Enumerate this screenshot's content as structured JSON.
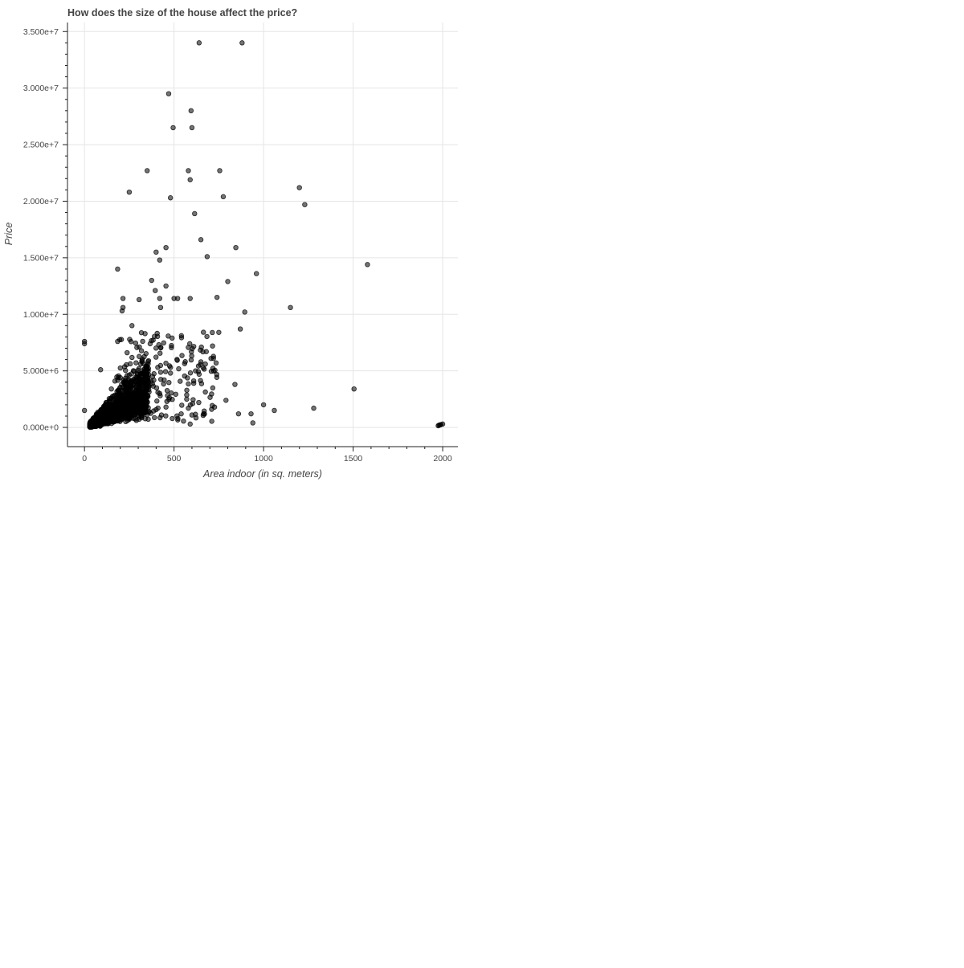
{
  "chart_data": {
    "type": "scatter",
    "title": "How does the size of the house affect the price?",
    "xlabel": "Area indoor (in sq. meters)",
    "ylabel": "Price",
    "xlim": [
      -95,
      2085
    ],
    "ylim": [
      -1700000,
      35800000
    ],
    "x_ticks": [
      0,
      500,
      1000,
      1500,
      2000
    ],
    "x_tick_labels": [
      "0",
      "500",
      "1000",
      "1500",
      "2000"
    ],
    "y_ticks": [
      0,
      5000000,
      10000000,
      15000000,
      20000000,
      25000000,
      30000000,
      35000000
    ],
    "y_tick_labels": [
      "0.000e+0",
      "5.000e+6",
      "1.000e+7",
      "1.500e+7",
      "2.000e+7",
      "2.500e+7",
      "3.000e+7",
      "3.500e+7"
    ],
    "grid": true,
    "legend": "none",
    "marker_color": "#000000",
    "marker_opacity": 0.55,
    "series": [
      {
        "x": [
          640,
          880,
          470,
          595,
          495,
          600,
          350,
          580,
          755,
          590,
          250,
          775,
          480,
          615,
          1200,
          1230,
          650,
          845,
          455,
          400,
          685,
          1580,
          420,
          185,
          960,
          375,
          800,
          455,
          500,
          395,
          420,
          740,
          425,
          215,
          305,
          210,
          215,
          265,
          1150,
          590,
          520,
          895,
          750,
          0,
          0,
          90,
          185,
          715,
          680,
          870,
          1505,
          1280,
          1060,
          1000,
          840,
          860,
          930,
          940,
          790,
          580,
          540,
          590,
          600,
          455,
          665,
          710,
          460,
          420,
          445,
          480,
          640,
          620,
          610,
          650,
          720,
          735,
          0,
          55,
          80,
          130,
          150,
          170,
          200,
          230,
          260,
          290,
          320,
          350,
          380,
          410
        ],
        "y": [
          34000000,
          34000000,
          29500000,
          28000000,
          26500000,
          26500000,
          22700000,
          22700000,
          22700000,
          21900000,
          20800000,
          20400000,
          20300000,
          18900000,
          21200000,
          19700000,
          16600000,
          15900000,
          15900000,
          15500000,
          15100000,
          14400000,
          14800000,
          14000000,
          13600000,
          13000000,
          12900000,
          12500000,
          11400000,
          12100000,
          11400000,
          11500000,
          10600000,
          11400000,
          11300000,
          10300000,
          10600000,
          9000000,
          10600000,
          11400000,
          11400000,
          10200000,
          8400000,
          7400000,
          7600000,
          5100000,
          7600000,
          7200000,
          6700000,
          8700000,
          3400000,
          1700000,
          1500000,
          2000000,
          3800000,
          1200000,
          1200000,
          400000,
          2400000,
          1700000,
          1200000,
          300000,
          1100000,
          1800000,
          1200000,
          1600000,
          2300000,
          3000000,
          4200000,
          4800000,
          4700000,
          5000000,
          3900000,
          5800000,
          6100000,
          5700000,
          1500000,
          500000,
          1200000,
          2000000,
          3400000,
          4100000,
          4400000,
          3600000,
          2700000,
          3300000,
          4800000,
          5200000,
          4500000,
          3100000
        ]
      },
      {
        "x": [
          1980,
          1990,
          2000,
          1975,
          1985
        ],
        "y": [
          200000,
          250000,
          300000,
          150000,
          220000
        ]
      }
    ]
  }
}
